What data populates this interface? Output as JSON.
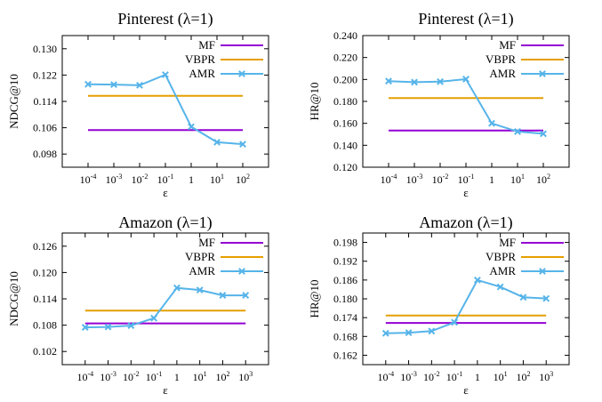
{
  "chart_data": [
    {
      "type": "line",
      "title": "Pinterest (λ=1)",
      "xlabel": "ε",
      "ylabel": "NDCG@10",
      "x_ticks": [
        {
          "base": "10",
          "exp": "-4"
        },
        {
          "base": "10",
          "exp": "-3"
        },
        {
          "base": "10",
          "exp": "-2"
        },
        {
          "base": "10",
          "exp": "-1"
        },
        {
          "base": "1",
          "exp": ""
        },
        {
          "base": "10",
          "exp": "1"
        },
        {
          "base": "10",
          "exp": "2"
        }
      ],
      "y_ticks": [
        "0.098",
        "0.106",
        "0.114",
        "0.122",
        "0.130"
      ],
      "ylim": [
        0.094,
        0.134
      ],
      "legend_position": "top-right",
      "grid": false,
      "series": [
        {
          "name": "MF",
          "color": "#9400d3",
          "marker": "none",
          "values": [
            0.1053,
            0.1053,
            0.1053,
            0.1053,
            0.1053,
            0.1053,
            0.1053
          ]
        },
        {
          "name": "VBPR",
          "color": "#e69f00",
          "marker": "none",
          "values": [
            0.1157,
            0.1157,
            0.1157,
            0.1157,
            0.1157,
            0.1157,
            0.1157
          ]
        },
        {
          "name": "AMR",
          "color": "#56b4e9",
          "marker": "x",
          "values": [
            0.1192,
            0.1191,
            0.1189,
            0.1221,
            0.1063,
            0.1016,
            0.101
          ]
        }
      ]
    },
    {
      "type": "line",
      "title": "Pinterest (λ=1)",
      "xlabel": "ε",
      "ylabel": "HR@10",
      "x_ticks": [
        {
          "base": "10",
          "exp": "-4"
        },
        {
          "base": "10",
          "exp": "-3"
        },
        {
          "base": "10",
          "exp": "-2"
        },
        {
          "base": "10",
          "exp": "-1"
        },
        {
          "base": "1",
          "exp": ""
        },
        {
          "base": "10",
          "exp": "1"
        },
        {
          "base": "10",
          "exp": "2"
        }
      ],
      "y_ticks": [
        "0.120",
        "0.140",
        "0.160",
        "0.180",
        "0.200",
        "0.220",
        "0.240"
      ],
      "ylim": [
        0.12,
        0.24
      ],
      "legend_position": "top-right",
      "grid": false,
      "series": [
        {
          "name": "MF",
          "color": "#9400d3",
          "marker": "none",
          "values": [
            0.1535,
            0.1535,
            0.1535,
            0.1535,
            0.1535,
            0.1535,
            0.1535
          ]
        },
        {
          "name": "VBPR",
          "color": "#e69f00",
          "marker": "none",
          "values": [
            0.183,
            0.183,
            0.183,
            0.183,
            0.183,
            0.183,
            0.183
          ]
        },
        {
          "name": "AMR",
          "color": "#56b4e9",
          "marker": "x",
          "values": [
            0.1985,
            0.1975,
            0.198,
            0.2003,
            0.16,
            0.1525,
            0.1505
          ]
        }
      ]
    },
    {
      "type": "line",
      "title": "Amazon (λ=1)",
      "xlabel": "ε",
      "ylabel": "NDCG@10",
      "x_ticks": [
        {
          "base": "10",
          "exp": "-4"
        },
        {
          "base": "10",
          "exp": "-3"
        },
        {
          "base": "10",
          "exp": "-2"
        },
        {
          "base": "10",
          "exp": "-1"
        },
        {
          "base": "1",
          "exp": ""
        },
        {
          "base": "10",
          "exp": "1"
        },
        {
          "base": "10",
          "exp": "2"
        },
        {
          "base": "10",
          "exp": "3"
        }
      ],
      "y_ticks": [
        "0.102",
        "0.108",
        "0.114",
        "0.120",
        "0.126"
      ],
      "ylim": [
        0.099,
        0.129
      ],
      "legend_position": "top-right",
      "grid": false,
      "series": [
        {
          "name": "MF",
          "color": "#9400d3",
          "marker": "none",
          "values": [
            0.1084,
            0.1084,
            0.1084,
            0.1084,
            0.1084,
            0.1084,
            0.1084,
            0.1084
          ]
        },
        {
          "name": "VBPR",
          "color": "#e69f00",
          "marker": "none",
          "values": [
            0.1113,
            0.1113,
            0.1113,
            0.1113,
            0.1113,
            0.1113,
            0.1113,
            0.1113
          ]
        },
        {
          "name": "AMR",
          "color": "#56b4e9",
          "marker": "x",
          "values": [
            0.1075,
            0.1076,
            0.1079,
            0.1096,
            0.1165,
            0.116,
            0.1148,
            0.1148
          ]
        }
      ]
    },
    {
      "type": "line",
      "title": "Amazon (λ=1)",
      "xlabel": "ε",
      "ylabel": "HR@10",
      "x_ticks": [
        {
          "base": "10",
          "exp": "-4"
        },
        {
          "base": "10",
          "exp": "-3"
        },
        {
          "base": "10",
          "exp": "-2"
        },
        {
          "base": "10",
          "exp": "-1"
        },
        {
          "base": "1",
          "exp": ""
        },
        {
          "base": "10",
          "exp": "1"
        },
        {
          "base": "10",
          "exp": "2"
        },
        {
          "base": "10",
          "exp": "3"
        }
      ],
      "y_ticks": [
        "0.162",
        "0.168",
        "0.174",
        "0.180",
        "0.186",
        "0.192",
        "0.198"
      ],
      "ylim": [
        0.159,
        0.201
      ],
      "legend_position": "top-right",
      "grid": false,
      "series": [
        {
          "name": "MF",
          "color": "#9400d3",
          "marker": "none",
          "values": [
            0.1723,
            0.1723,
            0.1723,
            0.1723,
            0.1723,
            0.1723,
            0.1723,
            0.1723
          ]
        },
        {
          "name": "VBPR",
          "color": "#e69f00",
          "marker": "none",
          "values": [
            0.1747,
            0.1747,
            0.1747,
            0.1747,
            0.1747,
            0.1747,
            0.1747,
            0.1747
          ]
        },
        {
          "name": "AMR",
          "color": "#56b4e9",
          "marker": "x",
          "values": [
            0.169,
            0.1692,
            0.1697,
            0.1725,
            0.186,
            0.1838,
            0.1805,
            0.1801
          ]
        }
      ]
    }
  ]
}
